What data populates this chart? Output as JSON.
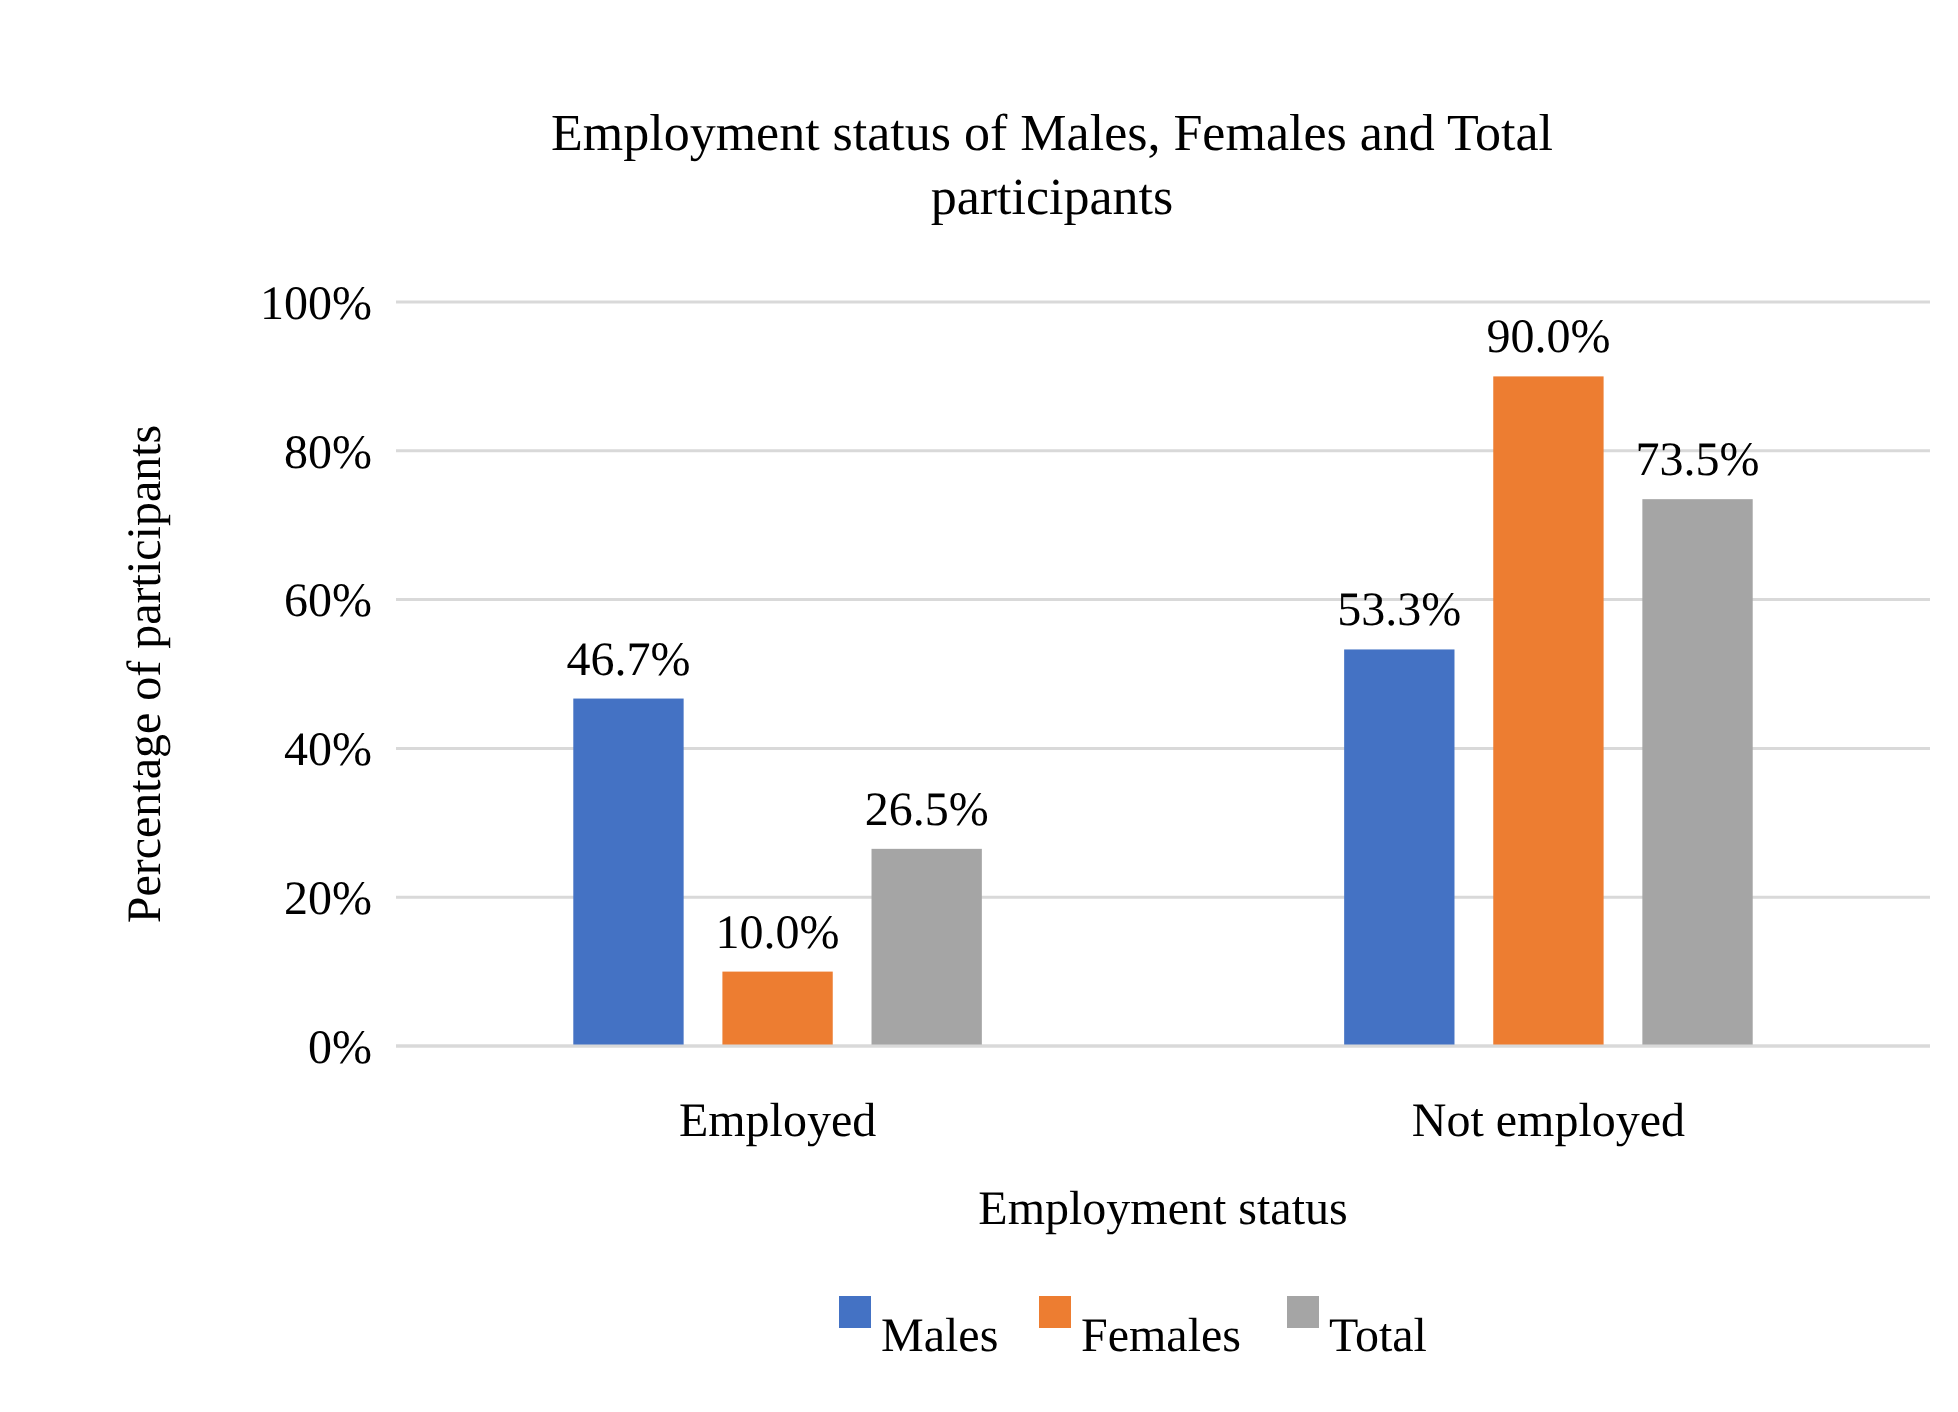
{
  "chart_data": {
    "type": "bar",
    "title": "Employment status of Males, Females and Total participants",
    "xlabel": "Employment status",
    "ylabel": "Percentage of participants",
    "categories": [
      "Employed",
      "Not employed"
    ],
    "series": [
      {
        "name": "Males",
        "color": "#4472c4",
        "values": [
          46.7,
          53.3
        ],
        "value_labels": [
          "46.7%",
          "53.3%"
        ]
      },
      {
        "name": "Females",
        "color": "#ed7d31",
        "values": [
          10.0,
          90.0
        ],
        "value_labels": [
          "10.0%",
          "90.0%"
        ]
      },
      {
        "name": "Total",
        "color": "#a5a5a5",
        "values": [
          26.5,
          73.5
        ],
        "value_labels": [
          "26.5%",
          "73.5%"
        ]
      }
    ],
    "ylim": [
      0,
      100
    ],
    "yticks": [
      {
        "value": 0,
        "label": "0%"
      },
      {
        "value": 20,
        "label": "20%"
      },
      {
        "value": 40,
        "label": "40%"
      },
      {
        "value": 60,
        "label": "60%"
      },
      {
        "value": 80,
        "label": "80%"
      },
      {
        "value": 100,
        "label": "100%"
      }
    ],
    "grid": "y",
    "legend": "bottom"
  }
}
